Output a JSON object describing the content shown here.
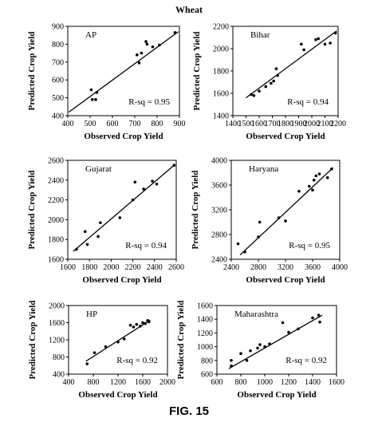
{
  "figure": {
    "title": "Wheat",
    "caption": "FIG. 15"
  },
  "chart_data": [
    {
      "type": "scatter",
      "title": "AP",
      "xlabel": "Observed Crop Yield",
      "ylabel": "Predicted Crop Yield",
      "xlim": [
        400,
        900
      ],
      "ylim": [
        400,
        900
      ],
      "xticks": [
        400,
        500,
        600,
        700,
        800,
        900
      ],
      "yticks": [
        400,
        500,
        600,
        700,
        800,
        900
      ],
      "annotation": "R-sq = 0.95",
      "points": [
        [
          505,
          545
        ],
        [
          510,
          490
        ],
        [
          525,
          490
        ],
        [
          530,
          530
        ],
        [
          710,
          740
        ],
        [
          720,
          695
        ],
        [
          730,
          750
        ],
        [
          750,
          815
        ],
        [
          755,
          800
        ],
        [
          780,
          785
        ],
        [
          810,
          795
        ],
        [
          880,
          865
        ]
      ],
      "fit_line": [
        [
          405,
          420
        ],
        [
          895,
          870
        ]
      ],
      "grid": false
    },
    {
      "type": "scatter",
      "title": "Bihar",
      "xlabel": "Observed Crop Yield",
      "ylabel": "Predicted Crop Yield",
      "xlim": [
        1400,
        2200
      ],
      "ylim": [
        1400,
        2200
      ],
      "xticks": [
        1400,
        1500,
        1600,
        1700,
        1800,
        1900,
        2000,
        2100,
        2200
      ],
      "yticks": [
        1400,
        1600,
        1800,
        2000,
        2200
      ],
      "annotation": "R-sq = 0.94",
      "points": [
        [
          1540,
          1590
        ],
        [
          1560,
          1580
        ],
        [
          1600,
          1620
        ],
        [
          1650,
          1660
        ],
        [
          1690,
          1690
        ],
        [
          1710,
          1710
        ],
        [
          1730,
          1820
        ],
        [
          1740,
          1760
        ],
        [
          1920,
          2040
        ],
        [
          1940,
          1990
        ],
        [
          2030,
          2080
        ],
        [
          2050,
          2090
        ],
        [
          2100,
          2040
        ],
        [
          2140,
          2050
        ],
        [
          2180,
          2140
        ]
      ],
      "fit_line": [
        [
          1500,
          1560
        ],
        [
          2190,
          2160
        ]
      ],
      "grid": false
    },
    {
      "type": "scatter",
      "title": "Gujarat",
      "xlabel": "Observed Crop Yield",
      "ylabel": "Predicted Crop Yield",
      "xlim": [
        1600,
        2600
      ],
      "ylim": [
        1600,
        2600
      ],
      "xticks": [
        1600,
        1800,
        2000,
        2200,
        2400,
        2600
      ],
      "yticks": [
        1600,
        1800,
        2000,
        2200,
        2400,
        2600
      ],
      "annotation": "R-sq = 0.94",
      "points": [
        [
          1680,
          1700
        ],
        [
          1760,
          1880
        ],
        [
          1780,
          1750
        ],
        [
          1880,
          1830
        ],
        [
          1900,
          1970
        ],
        [
          2080,
          2020
        ],
        [
          2200,
          2200
        ],
        [
          2220,
          2380
        ],
        [
          2300,
          2310
        ],
        [
          2380,
          2390
        ],
        [
          2420,
          2360
        ],
        [
          2580,
          2550
        ]
      ],
      "fit_line": [
        [
          1650,
          1680
        ],
        [
          2590,
          2560
        ]
      ],
      "grid": false
    },
    {
      "type": "scatter",
      "title": "Haryana",
      "xlabel": "Observed Crop Yield",
      "ylabel": "Predicted Crop Yield",
      "xlim": [
        2400,
        4000
      ],
      "ylim": [
        2400,
        4000
      ],
      "xticks": [
        2400,
        2800,
        3200,
        3600,
        4000
      ],
      "yticks": [
        2400,
        2800,
        3200,
        3600,
        4000
      ],
      "annotation": "R-sq = 0.95",
      "points": [
        [
          2500,
          2650
        ],
        [
          2600,
          2520
        ],
        [
          2800,
          2760
        ],
        [
          2820,
          3000
        ],
        [
          3100,
          3070
        ],
        [
          3200,
          3020
        ],
        [
          3400,
          3500
        ],
        [
          3550,
          3580
        ],
        [
          3600,
          3520
        ],
        [
          3620,
          3680
        ],
        [
          3650,
          3750
        ],
        [
          3700,
          3780
        ],
        [
          3820,
          3720
        ],
        [
          3880,
          3860
        ]
      ],
      "fit_line": [
        [
          2530,
          2470
        ],
        [
          3900,
          3880
        ]
      ],
      "grid": false
    },
    {
      "type": "scatter",
      "title": "HP",
      "xlabel": "Observed Crop Yield",
      "ylabel": "Predicted Crop Yield",
      "xlim": [
        400,
        2000
      ],
      "ylim": [
        400,
        2000
      ],
      "xticks": [
        400,
        800,
        1200,
        1600,
        2000
      ],
      "yticks": [
        400,
        800,
        1200,
        1600,
        2000
      ],
      "annotation": "R-sq = 0.92",
      "points": [
        [
          700,
          640
        ],
        [
          820,
          900
        ],
        [
          1000,
          1040
        ],
        [
          1200,
          1150
        ],
        [
          1300,
          1220
        ],
        [
          1400,
          1540
        ],
        [
          1450,
          1500
        ],
        [
          1500,
          1560
        ],
        [
          1560,
          1520
        ],
        [
          1600,
          1600
        ],
        [
          1640,
          1580
        ],
        [
          1680,
          1650
        ],
        [
          1700,
          1620
        ]
      ],
      "fit_line": [
        [
          680,
          700
        ],
        [
          1720,
          1660
        ]
      ],
      "grid": false
    },
    {
      "type": "scatter",
      "title": "Maharashtra",
      "xlabel": "Observed Crop Yield",
      "ylabel": "Predicted Crop Yield",
      "xlim": [
        600,
        1600
      ],
      "ylim": [
        600,
        1600
      ],
      "xticks": [
        600,
        800,
        1000,
        1200,
        1400,
        1600
      ],
      "yticks": [
        600,
        800,
        1000,
        1200,
        1400,
        1600
      ],
      "annotation": "R-sq = 0.92",
      "points": [
        [
          720,
          720
        ],
        [
          720,
          800
        ],
        [
          800,
          900
        ],
        [
          850,
          800
        ],
        [
          880,
          940
        ],
        [
          940,
          980
        ],
        [
          960,
          1030
        ],
        [
          1000,
          1000
        ],
        [
          1040,
          1040
        ],
        [
          1150,
          1350
        ],
        [
          1200,
          1210
        ],
        [
          1280,
          1260
        ],
        [
          1400,
          1420
        ],
        [
          1450,
          1460
        ],
        [
          1460,
          1360
        ]
      ],
      "fit_line": [
        [
          700,
          680
        ],
        [
          1480,
          1460
        ]
      ],
      "grid": false
    }
  ]
}
